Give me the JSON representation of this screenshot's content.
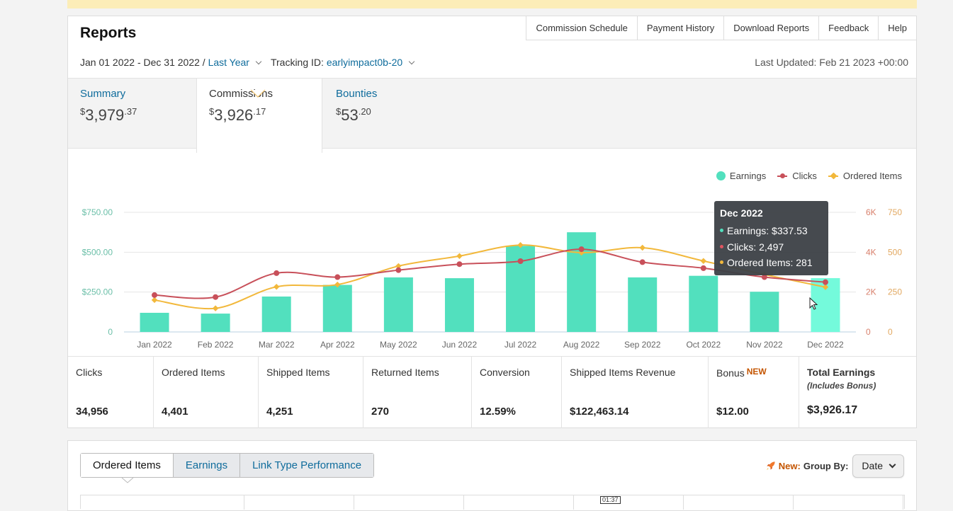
{
  "header": {
    "title": "Reports",
    "nav": [
      "Commission Schedule",
      "Payment History",
      "Download Reports",
      "Feedback",
      "Help"
    ]
  },
  "filters": {
    "date_range": "Jan 01 2022 - Dec 31 2022 /",
    "period": "Last Year",
    "tracking_label": "Tracking ID:",
    "tracking_id": "earlyimpact0b-20",
    "last_updated": "Last Updated: Feb 21 2023 +00:00"
  },
  "summary_tabs": [
    {
      "label": "Summary",
      "currency": "$",
      "whole": "3,979",
      "cents": ".37",
      "active": false
    },
    {
      "label": "Commissions",
      "currency": "$",
      "whole": "3,926",
      "cents": ".17",
      "active": true
    },
    {
      "label": "Bounties",
      "currency": "$",
      "whole": "53",
      "cents": ".20",
      "active": false
    }
  ],
  "legend": {
    "earnings": "Earnings",
    "clicks": "Clicks",
    "ordered_items": "Ordered Items"
  },
  "colors": {
    "earnings": "#52e0be",
    "earnings_highlight": "#74fadb",
    "clicks": "#c8505a",
    "ordered_items": "#f2b83b",
    "link": "#0f6c9c",
    "accent_orange": "#c45500"
  },
  "chart_data": {
    "type": "bar",
    "categories": [
      "Jan 2022",
      "Feb 2022",
      "Mar 2022",
      "Apr 2022",
      "May 2022",
      "Jun 2022",
      "Jul 2022",
      "Aug 2022",
      "Sep 2022",
      "Oct 2022",
      "Nov 2022",
      "Dec 2022"
    ],
    "series": [
      {
        "name": "Earnings",
        "type": "bar",
        "axis": "left",
        "values": [
          120,
          115,
          222,
          295,
          342,
          337,
          540,
          625,
          342,
          352,
          252,
          337.53
        ]
      },
      {
        "name": "Clicks",
        "type": "line",
        "axis": "right-1",
        "values": [
          1850,
          1750,
          2950,
          2750,
          3100,
          3400,
          3550,
          4150,
          3500,
          3200,
          2750,
          2497
        ]
      },
      {
        "name": "Ordered Items",
        "type": "line",
        "axis": "right-2",
        "values": [
          200,
          148,
          283,
          297,
          413,
          476,
          545,
          497,
          528,
          445,
          360,
          281
        ]
      }
    ],
    "y_left": {
      "ticks": [
        "0",
        "$250.00",
        "$500.00",
        "$750.00"
      ],
      "range": [
        0,
        750
      ]
    },
    "y_right1": {
      "ticks": [
        "0",
        "2K",
        "4K",
        "6K"
      ],
      "range": [
        0,
        6000
      ]
    },
    "y_right2": {
      "ticks": [
        "0",
        "250",
        "500",
        "750"
      ],
      "range": [
        0,
        750
      ]
    },
    "highlighted_index": 11,
    "grid": true,
    "legend_position": "top-right"
  },
  "tooltip": {
    "title": "Dec 2022",
    "earnings": "Earnings: $337.53",
    "clicks": "Clicks: 2,497",
    "ordered_items": "Ordered Items: 281"
  },
  "stats": [
    {
      "label": "Clicks",
      "value": "34,956"
    },
    {
      "label": "Ordered Items",
      "value": "4,401"
    },
    {
      "label": "Shipped Items",
      "value": "4,251"
    },
    {
      "label": "Returned Items",
      "value": "270"
    },
    {
      "label": "Conversion",
      "value": "12.59%"
    },
    {
      "label": "Shipped Items Revenue",
      "value": "$122,463.14"
    },
    {
      "label": "Bonus",
      "badge": "NEW",
      "value": "$12.00"
    },
    {
      "label": "Total Earnings",
      "sub": "(Includes Bonus)",
      "value": "$3,926.17"
    }
  ],
  "lower": {
    "tabs": [
      "Ordered Items",
      "Earnings",
      "Link Type Performance"
    ],
    "new_label": "New:",
    "group_by_label": "Group By:",
    "group_by_value": "Date",
    "time_chip": "01:37"
  }
}
